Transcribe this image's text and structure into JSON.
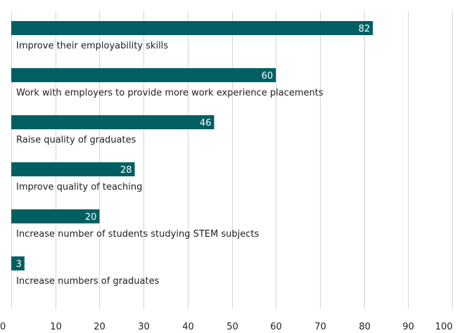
{
  "chart_data": {
    "type": "bar",
    "orientation": "horizontal",
    "categories": [
      "Improve their employability skills",
      "Work with employers to provide more work experience placements",
      "Raise quality of graduates",
      "Improve quality of teaching",
      "Increase number of students studying STEM subjects",
      "Increase numbers of graduates"
    ],
    "values": [
      82,
      60,
      46,
      28,
      20,
      3
    ],
    "value_labels": [
      "82",
      "60",
      "46",
      "28",
      "20",
      "3"
    ],
    "xticks": [
      "0",
      "10",
      "20",
      "30",
      "40",
      "50",
      "60",
      "70",
      "80",
      "90",
      "100"
    ],
    "xlim": [
      0,
      100
    ],
    "title": "",
    "xlabel": "",
    "ylabel": "",
    "grid": "vertical",
    "bar_color": "#005f63",
    "grid_color": "#d4d4d4"
  }
}
